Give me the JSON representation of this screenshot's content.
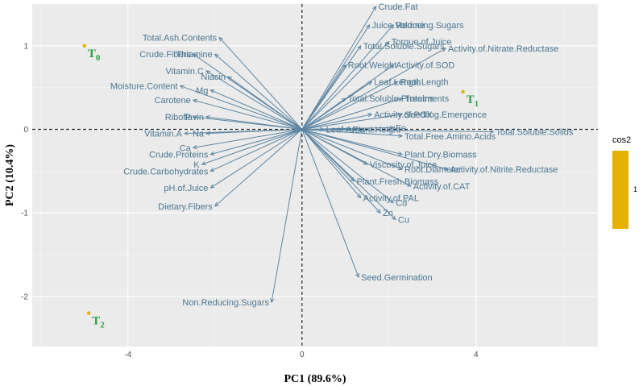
{
  "chart_data": {
    "type": "scatter",
    "subtype": "pca-biplot",
    "xlabel": "PC1 (89.6%)",
    "ylabel": "PC2 (10.4%)",
    "xlim": [
      -6.2,
      6.8
    ],
    "ylim": [
      -2.6,
      1.5
    ],
    "xticks": [
      -4,
      0,
      4
    ],
    "yticks": [
      -2,
      -1,
      0,
      1
    ],
    "grid": true,
    "reference_lines": {
      "x": 0,
      "y": 0
    },
    "legend": {
      "title": "cos2",
      "tick": "1",
      "color": "#e5b000",
      "position": "right"
    },
    "arrow_color": "#5d86a3",
    "label_color": "#4a7792",
    "individual_label_color": "#2ea043",
    "individual_point_color": "#e5b000",
    "individuals": [
      {
        "base": "T",
        "sub": "0",
        "x": -5.0,
        "y": 1.0
      },
      {
        "base": "T",
        "sub": "1",
        "x": 3.7,
        "y": 0.45
      },
      {
        "base": "T",
        "sub": "2",
        "x": -4.9,
        "y": -2.2
      }
    ],
    "variables": [
      {
        "name": "Crude.Fat",
        "x": 1.7,
        "y": 1.47
      },
      {
        "name": "Juice.Volume",
        "x": 1.55,
        "y": 1.25
      },
      {
        "name": "Reducing.Sugars",
        "x": 2.1,
        "y": 1.25
      },
      {
        "name": "Total.Soluble.Sugars",
        "x": 1.35,
        "y": 1.0
      },
      {
        "name": "Torque.of.Juice",
        "x": 2.0,
        "y": 1.05
      },
      {
        "name": "Activity.of.Nitrate.Reductase",
        "x": 3.3,
        "y": 0.97
      },
      {
        "name": "Root.Weight",
        "x": 1.0,
        "y": 0.77
      },
      {
        "name": "Activity.of.SOD",
        "x": 2.1,
        "y": 0.77
      },
      {
        "name": "Leaf.Length",
        "x": 1.6,
        "y": 0.57
      },
      {
        "name": "Root.Length",
        "x": 2.2,
        "y": 0.57
      },
      {
        "name": "Total.Soluble.Proteins",
        "x": 1.0,
        "y": 0.37
      },
      {
        "name": "Treatments",
        "x": 2.3,
        "y": 0.37
      },
      {
        "name": "Activity.of.POX",
        "x": 1.6,
        "y": 0.18
      },
      {
        "name": "Seedling.Emergence",
        "x": 2.3,
        "y": 0.18
      },
      {
        "name": "Leaf.Area",
        "x": 0.5,
        "y": 0.0
      },
      {
        "name": "Plant.Height",
        "x": 1.1,
        "y": 0.0
      },
      {
        "name": "Fe",
        "x": 2.1,
        "y": 0.02
      },
      {
        "name": "Total.Soluble.Solids",
        "x": 4.4,
        "y": -0.03
      },
      {
        "name": "Total.Free.Amino.Acids",
        "x": 2.3,
        "y": -0.08
      },
      {
        "name": "Plant.Dry.Biomass",
        "x": 2.3,
        "y": -0.3
      },
      {
        "name": "Viscosity.of.Juice",
        "x": 1.5,
        "y": -0.42
      },
      {
        "name": "Root.Diameter",
        "x": 2.3,
        "y": -0.48
      },
      {
        "name": "Activity.of.Nitrite.Reductase",
        "x": 3.35,
        "y": -0.48
      },
      {
        "name": "Plant.Fresh.Biomass",
        "x": 1.2,
        "y": -0.62
      },
      {
        "name": "Activity.of.CAT",
        "x": 2.5,
        "y": -0.68
      },
      {
        "name": "Activity.of.PAL",
        "x": 1.35,
        "y": -0.82
      },
      {
        "name": "Cd",
        "x": 2.1,
        "y": -0.88
      },
      {
        "name": "Zn",
        "x": 1.8,
        "y": -1.0
      },
      {
        "name": "Cu",
        "x": 2.15,
        "y": -1.08
      },
      {
        "name": "Seed.Germination",
        "x": 1.3,
        "y": -1.77
      },
      {
        "name": "Non.Reducing.Sugars",
        "x": -0.7,
        "y": -2.07
      },
      {
        "name": "Total.Ash.Contents",
        "x": -1.9,
        "y": 1.1
      },
      {
        "name": "Crude.Fibers",
        "x": -2.5,
        "y": 0.9
      },
      {
        "name": "Thiamine",
        "x": -2.0,
        "y": 0.9
      },
      {
        "name": "Vitamin.C",
        "x": -2.2,
        "y": 0.7
      },
      {
        "name": "Niacin",
        "x": -1.7,
        "y": 0.63
      },
      {
        "name": "Moisture.Content",
        "x": -2.8,
        "y": 0.52
      },
      {
        "name": "Mg",
        "x": -2.1,
        "y": 0.47
      },
      {
        "name": "Carotene",
        "x": -2.5,
        "y": 0.35
      },
      {
        "name": "P",
        "x": -2.5,
        "y": 0.15
      },
      {
        "name": "Riboflavin",
        "x": -2.2,
        "y": 0.15
      },
      {
        "name": "Vitamin.A",
        "x": -2.7,
        "y": -0.05
      },
      {
        "name": "Na",
        "x": -2.2,
        "y": -0.05
      },
      {
        "name": "Ca",
        "x": -2.5,
        "y": -0.22
      },
      {
        "name": "Crude.Proteins",
        "x": -2.1,
        "y": -0.3
      },
      {
        "name": "K",
        "x": -2.3,
        "y": -0.42
      },
      {
        "name": "Crude.Carbohydrates",
        "x": -2.1,
        "y": -0.5
      },
      {
        "name": "pH.of.Juice",
        "x": -2.1,
        "y": -0.7
      },
      {
        "name": "Dietary.Fibers",
        "x": -2.0,
        "y": -0.92
      }
    ]
  }
}
